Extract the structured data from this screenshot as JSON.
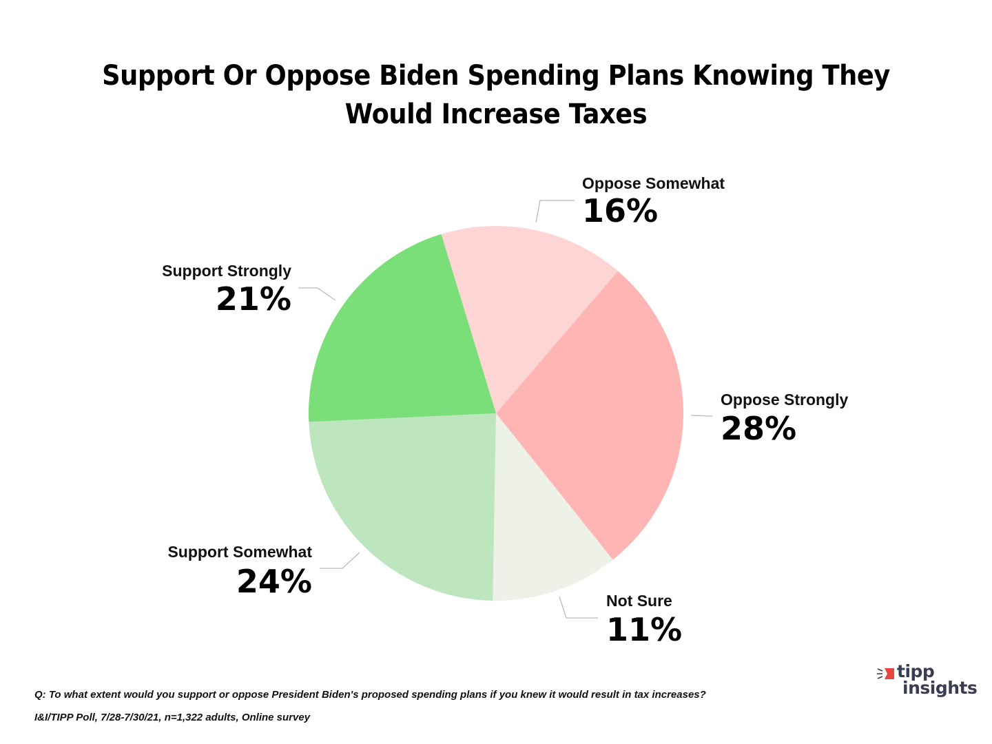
{
  "chart_data": {
    "type": "pie",
    "title": "Support Or Oppose Biden Spending Plans Knowing They Would Increase Taxes",
    "title_lines": [
      "Support Or Oppose Biden Spending Plans Knowing They",
      "Would Increase Taxes"
    ],
    "start_angle_deg": -17,
    "direction": "clockwise",
    "slices": [
      {
        "label": "Oppose Somewhat",
        "value": 16,
        "display": "16%",
        "color": "#fdd5d4"
      },
      {
        "label": "Oppose Strongly",
        "value": 28,
        "display": "28%",
        "color": "#feb5b4"
      },
      {
        "label": "Not Sure",
        "value": 11,
        "display": "11%",
        "color": "#edf1e7"
      },
      {
        "label": "Support Somewhat",
        "value": 24,
        "display": "24%",
        "color": "#bee6be"
      },
      {
        "label": "Support Strongly",
        "value": 21,
        "display": "21%",
        "color": "#7ade79"
      }
    ],
    "legend": "none",
    "data_labels": "outside with leader lines"
  },
  "footer": {
    "question": "Q: To what extent would you support or oppose President Biden's proposed spending plans if you knew it would result in tax increases?",
    "source": "I&I/TIPP Poll, 7/28-7/30/21, n=1,322 adults, Online survey"
  },
  "logo": {
    "line1": "tipp",
    "line2": "insights",
    "accent_color": "#e8473e",
    "text_color": "#3b3d55"
  }
}
